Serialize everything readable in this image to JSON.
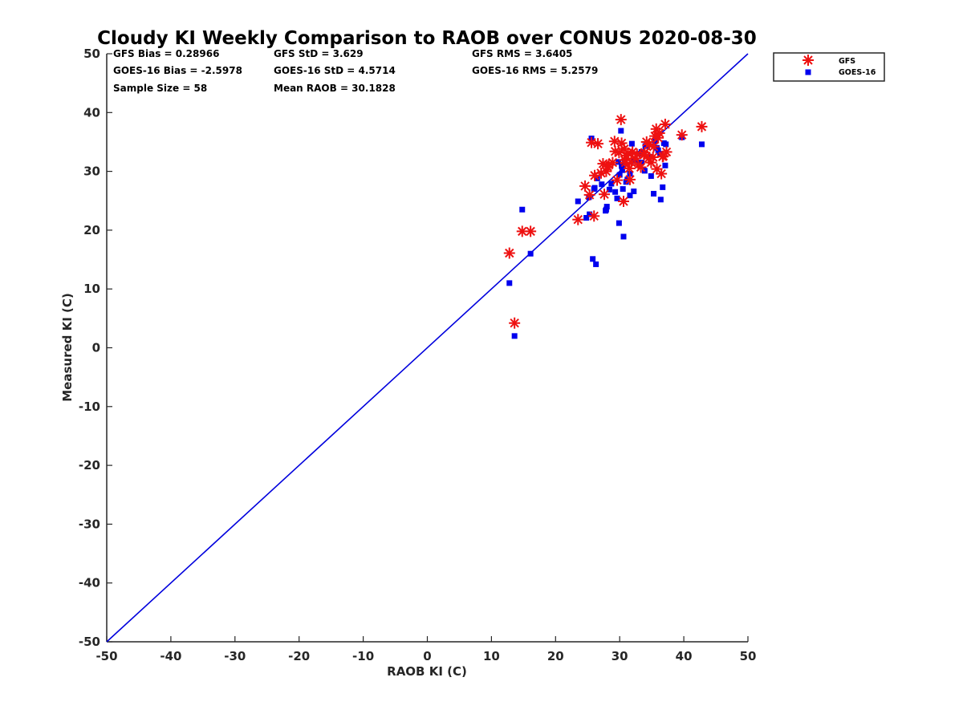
{
  "chart_data": {
    "type": "scatter",
    "title": "Cloudy KI Weekly Comparison to RAOB over CONUS 2020-08-30",
    "xlabel": "RAOB KI (C)",
    "ylabel": "Measured KI (C)",
    "xlim": [
      -50,
      50
    ],
    "ylim": [
      -50,
      50
    ],
    "xticks": [
      -50,
      -40,
      -30,
      -20,
      -10,
      0,
      10,
      20,
      30,
      40,
      50
    ],
    "yticks": [
      -50,
      -40,
      -30,
      -20,
      -10,
      0,
      10,
      20,
      30,
      40,
      50
    ],
    "grid": false,
    "legend_position": "top-right outside",
    "reference_line": {
      "from": [
        -50,
        -50
      ],
      "to": [
        50,
        50
      ],
      "color": "#0000dd"
    },
    "stats": [
      [
        "GFS Bias = 0.28966",
        "GFS StD = 3.629",
        "GFS RMS = 3.6405"
      ],
      [
        "GOES-16 Bias = -2.5978",
        "GOES-16 StD = 4.5714",
        "GOES-16 RMS = 5.2579"
      ],
      [
        "Sample Size = 58",
        "Mean RAOB = 30.1828",
        ""
      ]
    ],
    "series": [
      {
        "name": "GFS",
        "marker": "asterisk",
        "color": "#ee1111",
        "x": [
          13.6,
          12.8,
          14.8,
          16.1,
          23.5,
          26.0,
          24.6,
          25.3,
          26.1,
          25.6,
          26.6,
          27.4,
          27.9,
          27.6,
          28.3,
          28.9,
          29.2,
          29.6,
          29.9,
          30.2,
          30.3,
          30.6,
          30.8,
          31.0,
          31.3,
          31.5,
          31.6,
          32.0,
          32.4,
          32.9,
          33.3,
          33.8,
          34.2,
          34.5,
          34.9,
          35.2,
          35.5,
          35.7,
          36.0,
          36.2,
          36.5,
          36.8,
          37.1,
          37.3,
          39.7,
          42.8,
          35.8,
          29.3,
          30.7,
          33.9,
          36.7,
          28.1,
          31.8,
          34.6,
          27.1,
          30.9,
          32.7,
          35.3
        ],
        "y": [
          4.2,
          16.1,
          19.8,
          19.8,
          21.8,
          22.4,
          27.5,
          26.0,
          29.3,
          34.9,
          34.7,
          31.3,
          30.0,
          26.1,
          31.1,
          31.5,
          35.1,
          28.5,
          33.2,
          38.8,
          34.8,
          24.9,
          31.9,
          32.7,
          33.1,
          30.5,
          28.6,
          33.3,
          32.2,
          31.1,
          30.7,
          32.8,
          35.0,
          32.2,
          31.5,
          32.4,
          36.0,
          37.2,
          35.7,
          36.5,
          29.6,
          32.6,
          38.0,
          33.3,
          36.2,
          37.6,
          30.4,
          33.4,
          33.8,
          33.2,
          32.5,
          30.8,
          31.5,
          34.6,
          29.7,
          31.5,
          32.9,
          34.2
        ]
      },
      {
        "name": "GOES-16",
        "marker": "square",
        "color": "#0000ee",
        "x": [
          13.6,
          12.8,
          14.8,
          16.1,
          23.5,
          25.6,
          25.8,
          26.3,
          24.8,
          25.3,
          26.0,
          26.5,
          27.2,
          27.8,
          28.0,
          28.7,
          29.3,
          29.6,
          29.9,
          30.2,
          30.3,
          30.5,
          30.6,
          31.0,
          31.2,
          31.6,
          31.9,
          32.2,
          32.5,
          33.0,
          33.4,
          33.9,
          34.2,
          34.6,
          34.9,
          35.3,
          35.5,
          35.8,
          36.0,
          36.4,
          36.7,
          36.9,
          37.1,
          37.2,
          39.7,
          42.8,
          25.2,
          30.0,
          30.4,
          29.8,
          26.1,
          27.9,
          31.6,
          33.4,
          28.4,
          30.8,
          34.0,
          36.3
        ],
        "y": [
          2.0,
          11.0,
          23.5,
          16.0,
          24.9,
          35.6,
          15.1,
          14.2,
          22.1,
          22.7,
          27.0,
          28.8,
          27.8,
          23.3,
          24.0,
          27.9,
          26.5,
          25.4,
          21.2,
          36.9,
          30.9,
          27.0,
          18.9,
          28.2,
          28.6,
          25.9,
          34.7,
          26.6,
          31.8,
          33.0,
          31.5,
          30.1,
          34.5,
          32.5,
          29.2,
          26.2,
          35.1,
          34.0,
          33.6,
          25.2,
          27.3,
          34.8,
          31.0,
          34.6,
          35.8,
          34.6,
          25.6,
          29.4,
          30.2,
          31.6,
          27.2,
          23.5,
          29.6,
          33.3,
          26.9,
          31.8,
          34.3,
          33.0
        ]
      }
    ]
  }
}
